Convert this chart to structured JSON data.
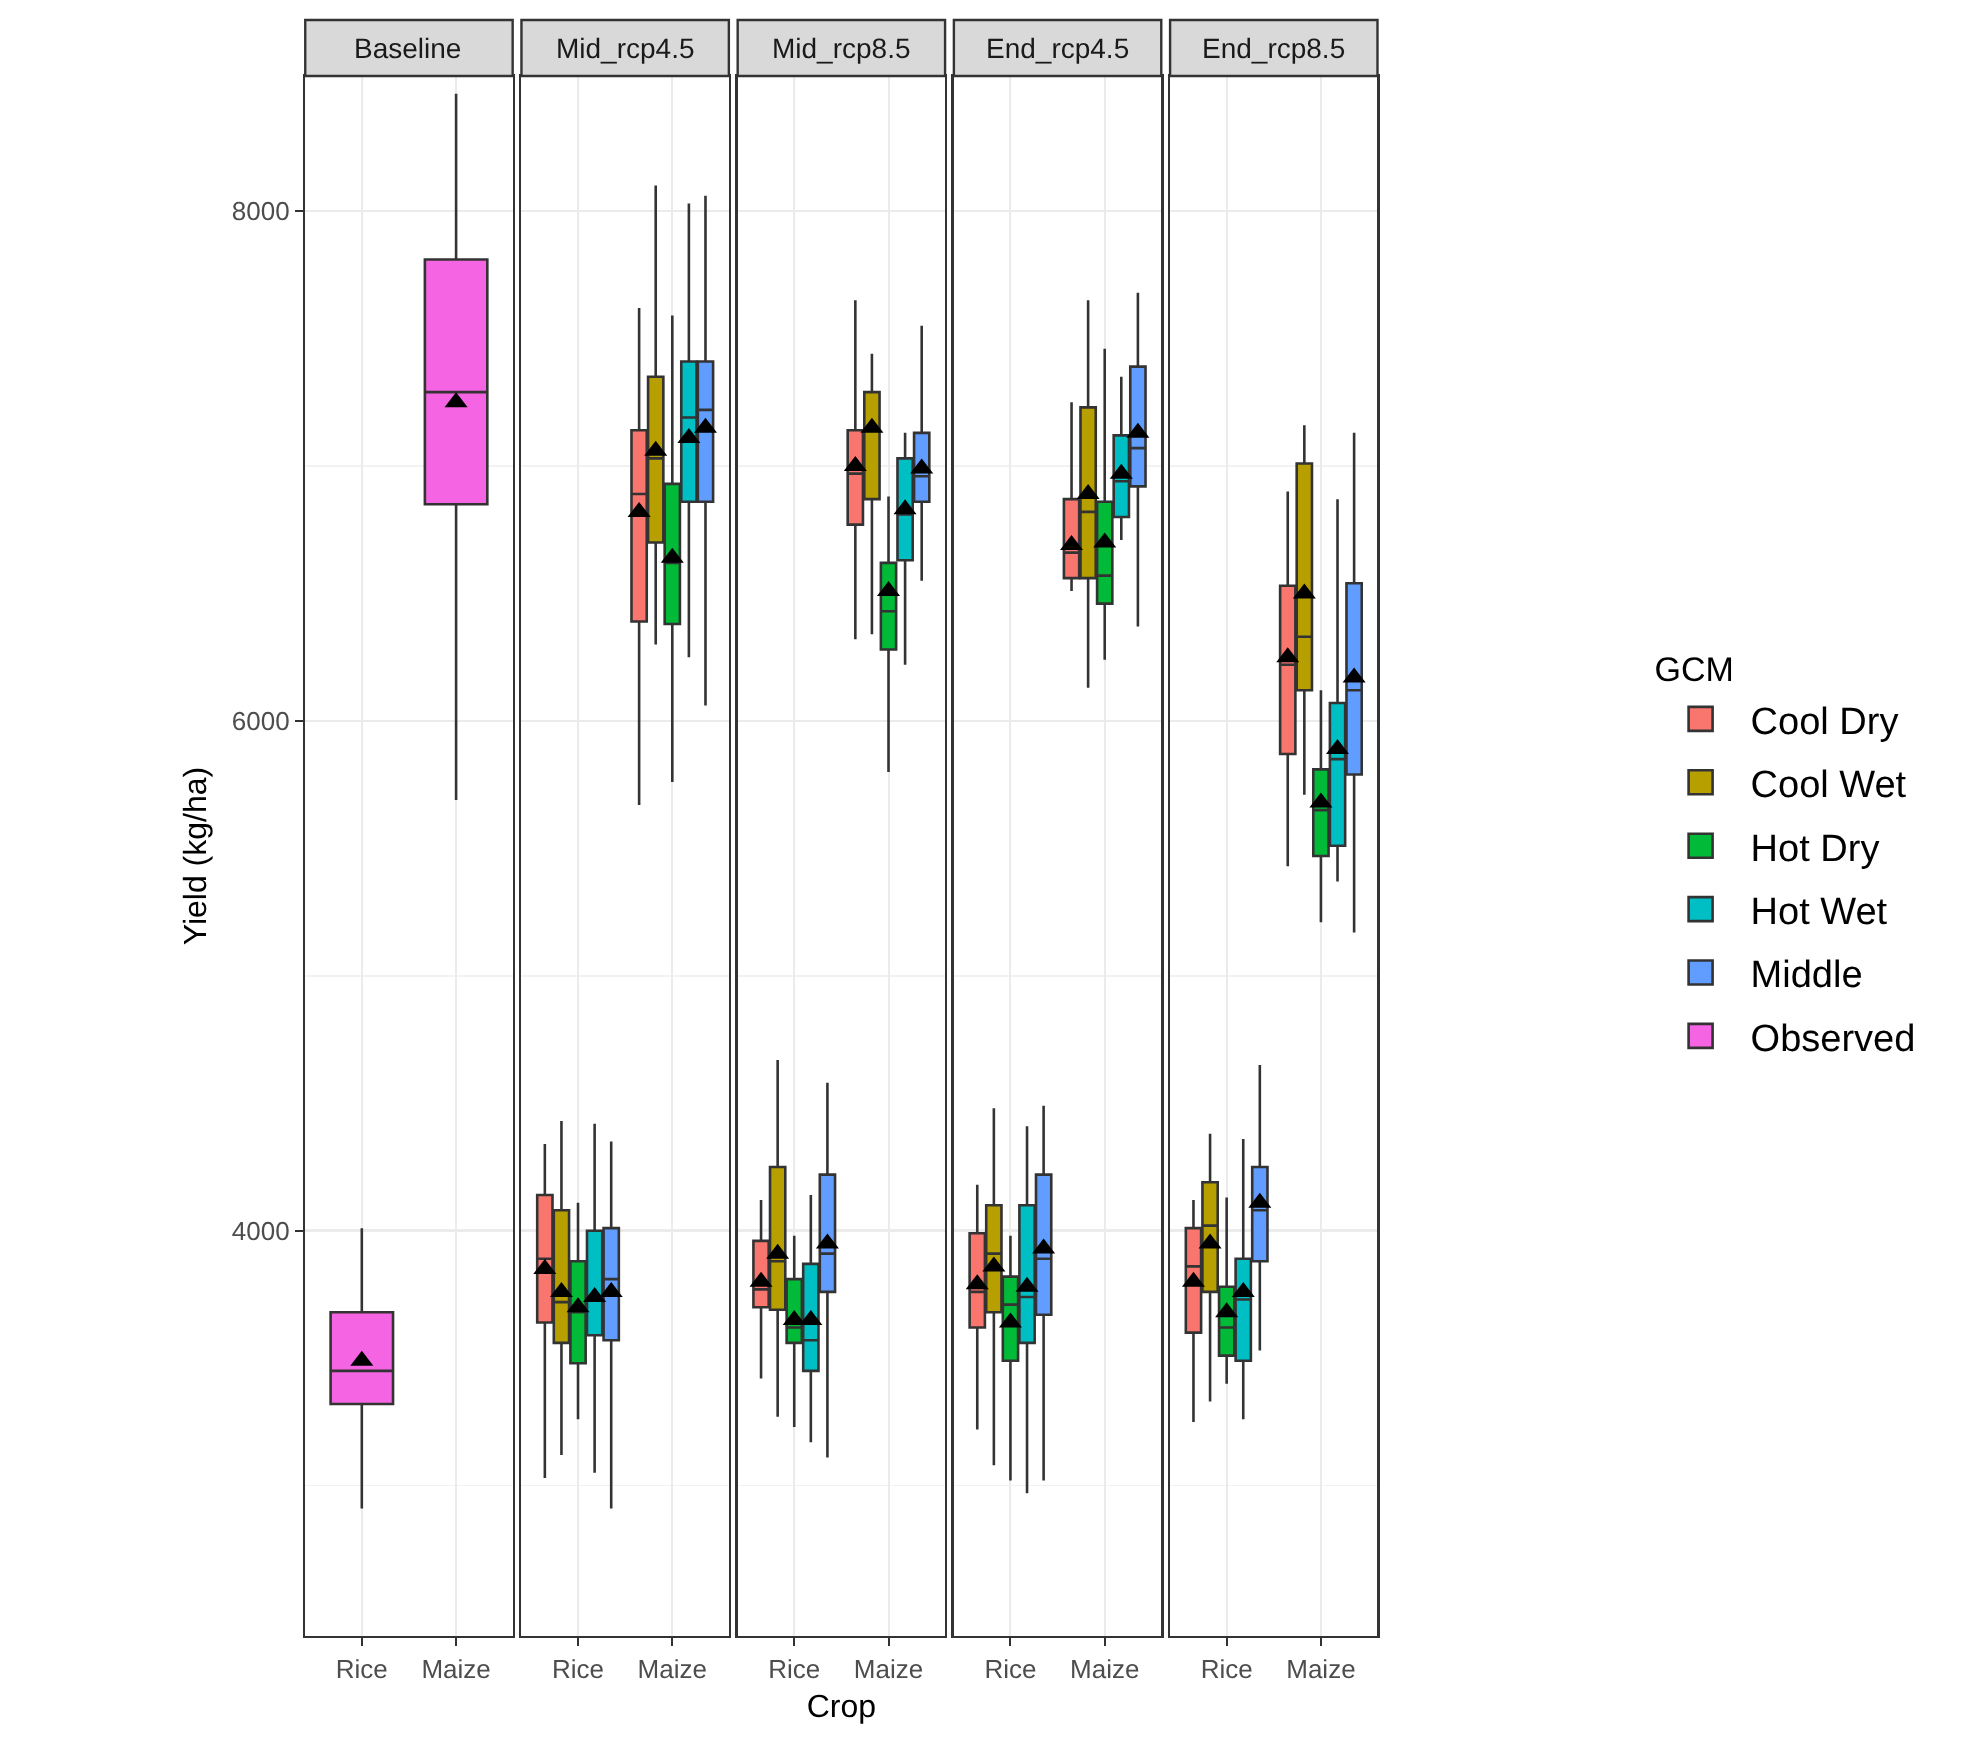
{
  "chart_data": [
    {
      "type": "box",
      "title": "Baseline",
      "ylabel": "Yield (kg/ha)",
      "categories": [
        "Rice",
        "Maize"
      ],
      "ylim": [
        2410,
        8530
      ],
      "yticks": [
        {
          "value": 3000,
          "label": null
        },
        4000,
        {
          "value": 5000,
          "label": null
        },
        6000,
        {
          "value": 7000,
          "label": null
        },
        8000
      ],
      "grid": true,
      "legend": "right",
      "marker": "triangle",
      "series": [
        {
          "name": "Observed",
          "color": "#f564e3",
          "boxes": [
            {
              "low": 2910,
              "q1": 3320,
              "median": 3450,
              "q3": 3680,
              "high": 4010,
              "mean": 3490
            },
            {
              "low": 5690,
              "q1": 6850,
              "median": 7290,
              "q3": 7810,
              "high": 8460,
              "mean": 7250
            }
          ]
        }
      ]
    },
    {
      "type": "box",
      "title": "Mid_rcp4.5",
      "categories": [
        "Rice",
        "Maize"
      ],
      "ylim": [
        2410,
        8530
      ],
      "yticks": [
        {
          "value": 3000,
          "label": null
        },
        4000,
        {
          "value": 5000,
          "label": null
        },
        6000,
        {
          "value": 7000,
          "label": null
        },
        8000
      ],
      "grid": true,
      "legend": "right",
      "marker": "triangle",
      "tick_labels": "x",
      "series": [
        {
          "name": "Cool Dry",
          "color": "#f8766d",
          "boxes": [
            {
              "low": 3030,
              "q1": 3640,
              "median": 3890,
              "q3": 4140,
              "high": 4340,
              "mean": 3850
            },
            {
              "low": 5670,
              "q1": 6390,
              "median": 6890,
              "q3": 7140,
              "high": 7620,
              "mean": 6820
            }
          ]
        },
        {
          "name": "Cool Wet",
          "color": "#b79f00",
          "boxes": [
            {
              "low": 3120,
              "q1": 3560,
              "median": 3720,
              "q3": 4080,
              "high": 4430,
              "mean": 3760
            },
            {
              "low": 6300,
              "q1": 6700,
              "median": 7030,
              "q3": 7350,
              "high": 8100,
              "mean": 7060
            }
          ]
        },
        {
          "name": "Hot Dry",
          "color": "#00ba38",
          "boxes": [
            {
              "low": 3260,
              "q1": 3480,
              "median": 3680,
              "q3": 3880,
              "high": 4110,
              "mean": 3700
            },
            {
              "low": 5760,
              "q1": 6380,
              "median": 6620,
              "q3": 6930,
              "high": 7590,
              "mean": 6640
            }
          ]
        },
        {
          "name": "Hot Wet",
          "color": "#00bfc4",
          "boxes": [
            {
              "low": 3050,
              "q1": 3590,
              "median": 3730,
              "q3": 4000,
              "high": 4420,
              "mean": 3740
            },
            {
              "low": 6250,
              "q1": 6860,
              "median": 7190,
              "q3": 7410,
              "high": 8030,
              "mean": 7110
            }
          ]
        },
        {
          "name": "Middle",
          "color": "#619cff",
          "boxes": [
            {
              "low": 2910,
              "q1": 3570,
              "median": 3810,
              "q3": 4010,
              "high": 4350,
              "mean": 3760
            },
            {
              "low": 6060,
              "q1": 6860,
              "median": 7220,
              "q3": 7410,
              "high": 8060,
              "mean": 7150
            }
          ]
        }
      ]
    },
    {
      "type": "box",
      "title": "Mid_rcp8.5",
      "xlabel": "Crop",
      "categories": [
        "Rice",
        "Maize"
      ],
      "ylim": [
        2410,
        8530
      ],
      "yticks": [
        {
          "value": 3000,
          "label": null
        },
        4000,
        {
          "value": 5000,
          "label": null
        },
        6000,
        {
          "value": 7000,
          "label": null
        },
        8000
      ],
      "grid": true,
      "legend": "right",
      "marker": "triangle",
      "tick_labels": "x",
      "series": [
        {
          "name": "Cool Dry",
          "color": "#f8766d",
          "boxes": [
            {
              "low": 3420,
              "q1": 3700,
              "median": 3770,
              "q3": 3960,
              "high": 4120,
              "mean": 3800
            },
            {
              "low": 6320,
              "q1": 6770,
              "median": 6970,
              "q3": 7140,
              "high": 7650,
              "mean": 7000
            }
          ]
        },
        {
          "name": "Cool Wet",
          "color": "#b79f00",
          "boxes": [
            {
              "low": 3270,
              "q1": 3690,
              "median": 3880,
              "q3": 4250,
              "high": 4670,
              "mean": 3910
            },
            {
              "low": 6340,
              "q1": 6870,
              "median": 7150,
              "q3": 7290,
              "high": 7440,
              "mean": 7150
            }
          ]
        },
        {
          "name": "Hot Dry",
          "color": "#00ba38",
          "boxes": [
            {
              "low": 3230,
              "q1": 3560,
              "median": 3620,
              "q3": 3810,
              "high": 3980,
              "mean": 3650
            },
            {
              "low": 5800,
              "q1": 6280,
              "median": 6430,
              "q3": 6620,
              "high": 6880,
              "mean": 6510
            }
          ]
        },
        {
          "name": "Hot Wet",
          "color": "#00bfc4",
          "boxes": [
            {
              "low": 3170,
              "q1": 3450,
              "median": 3570,
              "q3": 3870,
              "high": 4140,
              "mean": 3650
            },
            {
              "low": 6220,
              "q1": 6630,
              "median": 6810,
              "q3": 7030,
              "high": 7130,
              "mean": 6830
            }
          ]
        },
        {
          "name": "Middle",
          "color": "#619cff",
          "boxes": [
            {
              "low": 3110,
              "q1": 3760,
              "median": 3910,
              "q3": 4220,
              "high": 4580,
              "mean": 3950
            },
            {
              "low": 6550,
              "q1": 6860,
              "median": 6960,
              "q3": 7130,
              "high": 7550,
              "mean": 6990
            }
          ]
        }
      ]
    },
    {
      "type": "box",
      "title": "End_rcp4.5",
      "categories": [
        "Rice",
        "Maize"
      ],
      "ylim": [
        2410,
        8530
      ],
      "yticks": [
        {
          "value": 3000,
          "label": null
        },
        4000,
        {
          "value": 5000,
          "label": null
        },
        6000,
        {
          "value": 7000,
          "label": null
        },
        8000
      ],
      "grid": true,
      "legend": "right",
      "marker": "triangle",
      "tick_labels": "x",
      "series": [
        {
          "name": "Cool Dry",
          "color": "#f8766d",
          "boxes": [
            {
              "low": 3220,
              "q1": 3620,
              "median": 3760,
              "q3": 3990,
              "high": 4180,
              "mean": 3790
            },
            {
              "low": 6510,
              "q1": 6560,
              "median": 6660,
              "q3": 6870,
              "high": 7250,
              "mean": 6690
            }
          ]
        },
        {
          "name": "Cool Wet",
          "color": "#b79f00",
          "boxes": [
            {
              "low": 3080,
              "q1": 3680,
              "median": 3910,
              "q3": 4100,
              "high": 4480,
              "mean": 3860
            },
            {
              "low": 6130,
              "q1": 6560,
              "median": 6820,
              "q3": 7230,
              "high": 7650,
              "mean": 6890
            }
          ]
        },
        {
          "name": "Hot Dry",
          "color": "#00ba38",
          "boxes": [
            {
              "low": 3020,
              "q1": 3490,
              "median": 3710,
              "q3": 3820,
              "high": 3980,
              "mean": 3640
            },
            {
              "low": 6240,
              "q1": 6460,
              "median": 6570,
              "q3": 6860,
              "high": 7460,
              "mean": 6700
            }
          ]
        },
        {
          "name": "Hot Wet",
          "color": "#00bfc4",
          "boxes": [
            {
              "low": 2970,
              "q1": 3560,
              "median": 3740,
              "q3": 4100,
              "high": 4410,
              "mean": 3780
            },
            {
              "low": 6710,
              "q1": 6800,
              "median": 6940,
              "q3": 7120,
              "high": 7350,
              "mean": 6970
            }
          ]
        },
        {
          "name": "Middle",
          "color": "#619cff",
          "boxes": [
            {
              "low": 3020,
              "q1": 3670,
              "median": 3890,
              "q3": 4220,
              "high": 4490,
              "mean": 3930
            },
            {
              "low": 6370,
              "q1": 6920,
              "median": 7070,
              "q3": 7390,
              "high": 7680,
              "mean": 7130
            }
          ]
        }
      ]
    },
    {
      "type": "box",
      "title": "End_rcp8.5",
      "legend_title": "GCM",
      "categories": [
        "Rice",
        "Maize"
      ],
      "ylim": [
        2410,
        8530
      ],
      "yticks": [
        {
          "value": 3000,
          "label": null
        },
        4000,
        {
          "value": 5000,
          "label": null
        },
        6000,
        {
          "value": 7000,
          "label": null
        },
        8000
      ],
      "grid": true,
      "legend": "right",
      "marker": "triangle",
      "tick_labels": "x",
      "series": [
        {
          "name": "Cool Dry",
          "color": "#f8766d",
          "boxes": [
            {
              "low": 3250,
              "q1": 3600,
              "median": 3860,
              "q3": 4010,
              "high": 4120,
              "mean": 3800
            },
            {
              "low": 5430,
              "q1": 5870,
              "median": 6220,
              "q3": 6530,
              "high": 6900,
              "mean": 6250
            }
          ]
        },
        {
          "name": "Cool Wet",
          "color": "#b79f00",
          "boxes": [
            {
              "low": 3330,
              "q1": 3760,
              "median": 4020,
              "q3": 4190,
              "high": 4380,
              "mean": 3950
            },
            {
              "low": 5710,
              "q1": 6120,
              "median": 6330,
              "q3": 7010,
              "high": 7160,
              "mean": 6500
            }
          ]
        },
        {
          "name": "Hot Dry",
          "color": "#00ba38",
          "boxes": [
            {
              "low": 3400,
              "q1": 3510,
              "median": 3620,
              "q3": 3780,
              "high": 4130,
              "mean": 3680
            },
            {
              "low": 5210,
              "q1": 5470,
              "median": 5650,
              "q3": 5810,
              "high": 6120,
              "mean": 5680
            }
          ]
        },
        {
          "name": "Hot Wet",
          "color": "#00bfc4",
          "boxes": [
            {
              "low": 3260,
              "q1": 3490,
              "median": 3730,
              "q3": 3890,
              "high": 4360,
              "mean": 3760
            },
            {
              "low": 5370,
              "q1": 5510,
              "median": 5850,
              "q3": 6070,
              "high": 6870,
              "mean": 5890
            }
          ]
        },
        {
          "name": "Middle",
          "color": "#619cff",
          "boxes": [
            {
              "low": 3530,
              "q1": 3880,
              "median": 4080,
              "q3": 4250,
              "high": 4650,
              "mean": 4110
            },
            {
              "low": 5170,
              "q1": 5790,
              "median": 6120,
              "q3": 6540,
              "high": 7130,
              "mean": 6170
            }
          ]
        }
      ]
    }
  ]
}
